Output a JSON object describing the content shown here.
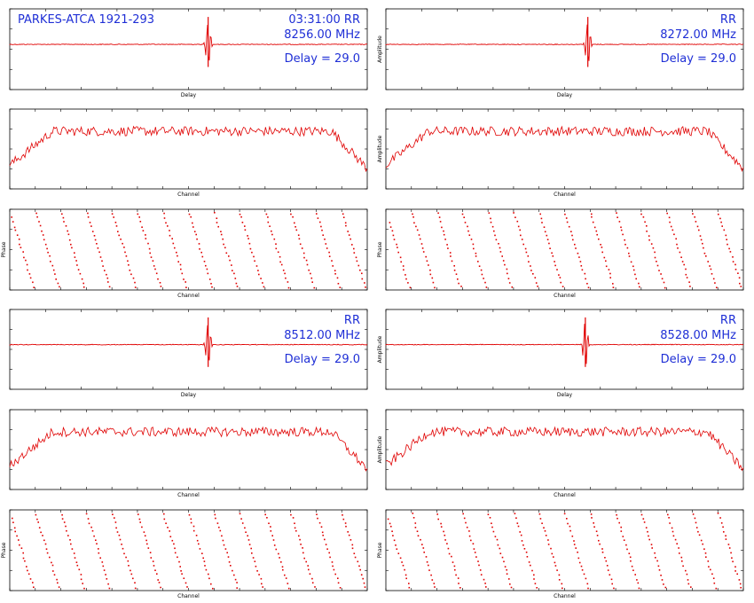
{
  "header": {
    "source": "PARKES-ATCA 1921-293",
    "time": "03:31:00"
  },
  "colors": {
    "trace": "#e00000",
    "annotation": "#1f2fd6",
    "frame": "#000000"
  },
  "chart_data": [
    {
      "type": "line",
      "panel": "delay",
      "pol": "RR",
      "freq": "8256.00 MHz",
      "delay": "Delay = 29.0",
      "xlabel": "Delay",
      "ylabel": ""
    },
    {
      "type": "line",
      "panel": "delay",
      "pol": "RR",
      "freq": "8272.00 MHz",
      "delay": "Delay = 29.0",
      "xlabel": "Delay",
      "ylabel": "Amplitude"
    },
    {
      "type": "line",
      "panel": "bandpass",
      "xlabel": "Channel",
      "ylabel": ""
    },
    {
      "type": "line",
      "panel": "bandpass",
      "xlabel": "Channel",
      "ylabel": "Amplitude"
    },
    {
      "type": "scatter",
      "panel": "phase",
      "xlabel": "Channel",
      "ylabel": "Phase"
    },
    {
      "type": "scatter",
      "panel": "phase",
      "xlabel": "Channel",
      "ylabel": "Phase"
    },
    {
      "type": "line",
      "panel": "delay",
      "pol": "RR",
      "freq": "8512.00 MHz",
      "delay": "Delay = 29.0",
      "xlabel": "Delay",
      "ylabel": ""
    },
    {
      "type": "line",
      "panel": "delay",
      "pol": "RR",
      "freq": "8528.00 MHz",
      "delay": "Delay = 29.0",
      "xlabel": "Delay",
      "ylabel": "Amplitude"
    },
    {
      "type": "line",
      "panel": "bandpass",
      "xlabel": "Channel",
      "ylabel": ""
    },
    {
      "type": "line",
      "panel": "bandpass",
      "xlabel": "Channel",
      "ylabel": "Amplitude"
    },
    {
      "type": "scatter",
      "panel": "phase",
      "xlabel": "Channel",
      "ylabel": "Phase"
    },
    {
      "type": "scatter",
      "panel": "phase",
      "xlabel": "Channel",
      "ylabel": "Phase"
    }
  ]
}
